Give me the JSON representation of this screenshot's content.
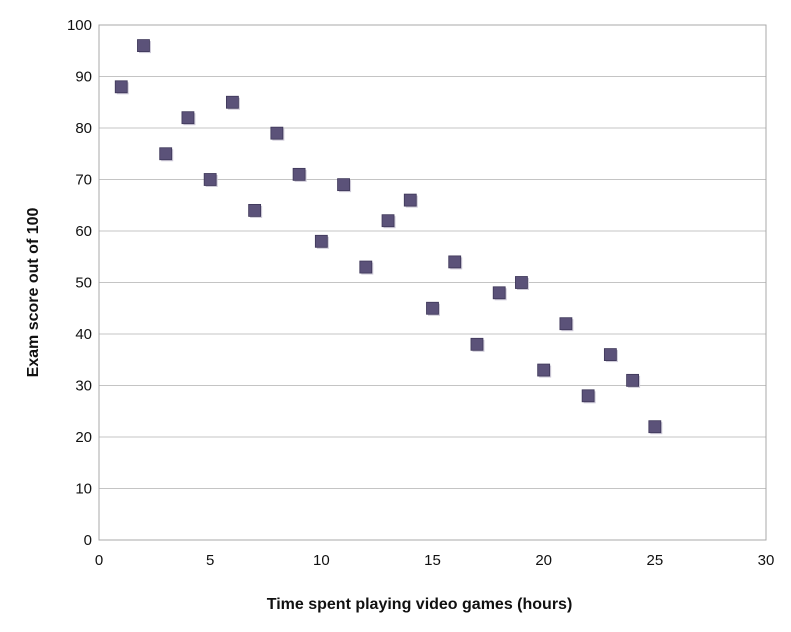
{
  "chart_data": {
    "type": "scatter",
    "title": "",
    "xlabel": "Time spent playing video games (hours)",
    "ylabel": "Exam score out of 100",
    "xlim": [
      0,
      30
    ],
    "ylim": [
      0,
      100
    ],
    "x_ticks": [
      0,
      5,
      10,
      15,
      20,
      25,
      30
    ],
    "y_ticks": [
      0,
      10,
      20,
      30,
      40,
      50,
      60,
      70,
      80,
      90,
      100
    ],
    "grid": "horizontal",
    "legend": "none",
    "marker": "square",
    "marker_color": "#5b5279",
    "points": [
      {
        "x": 1,
        "y": 88
      },
      {
        "x": 2,
        "y": 96
      },
      {
        "x": 3,
        "y": 75
      },
      {
        "x": 4,
        "y": 82
      },
      {
        "x": 5,
        "y": 70
      },
      {
        "x": 6,
        "y": 85
      },
      {
        "x": 7,
        "y": 64
      },
      {
        "x": 8,
        "y": 79
      },
      {
        "x": 9,
        "y": 71
      },
      {
        "x": 10,
        "y": 58
      },
      {
        "x": 11,
        "y": 69
      },
      {
        "x": 12,
        "y": 53
      },
      {
        "x": 13,
        "y": 62
      },
      {
        "x": 14,
        "y": 66
      },
      {
        "x": 15,
        "y": 45
      },
      {
        "x": 16,
        "y": 54
      },
      {
        "x": 17,
        "y": 38
      },
      {
        "x": 18,
        "y": 48
      },
      {
        "x": 19,
        "y": 50
      },
      {
        "x": 20,
        "y": 33
      },
      {
        "x": 21,
        "y": 42
      },
      {
        "x": 22,
        "y": 28
      },
      {
        "x": 23,
        "y": 36
      },
      {
        "x": 24,
        "y": 31
      },
      {
        "x": 25,
        "y": 22
      }
    ]
  }
}
